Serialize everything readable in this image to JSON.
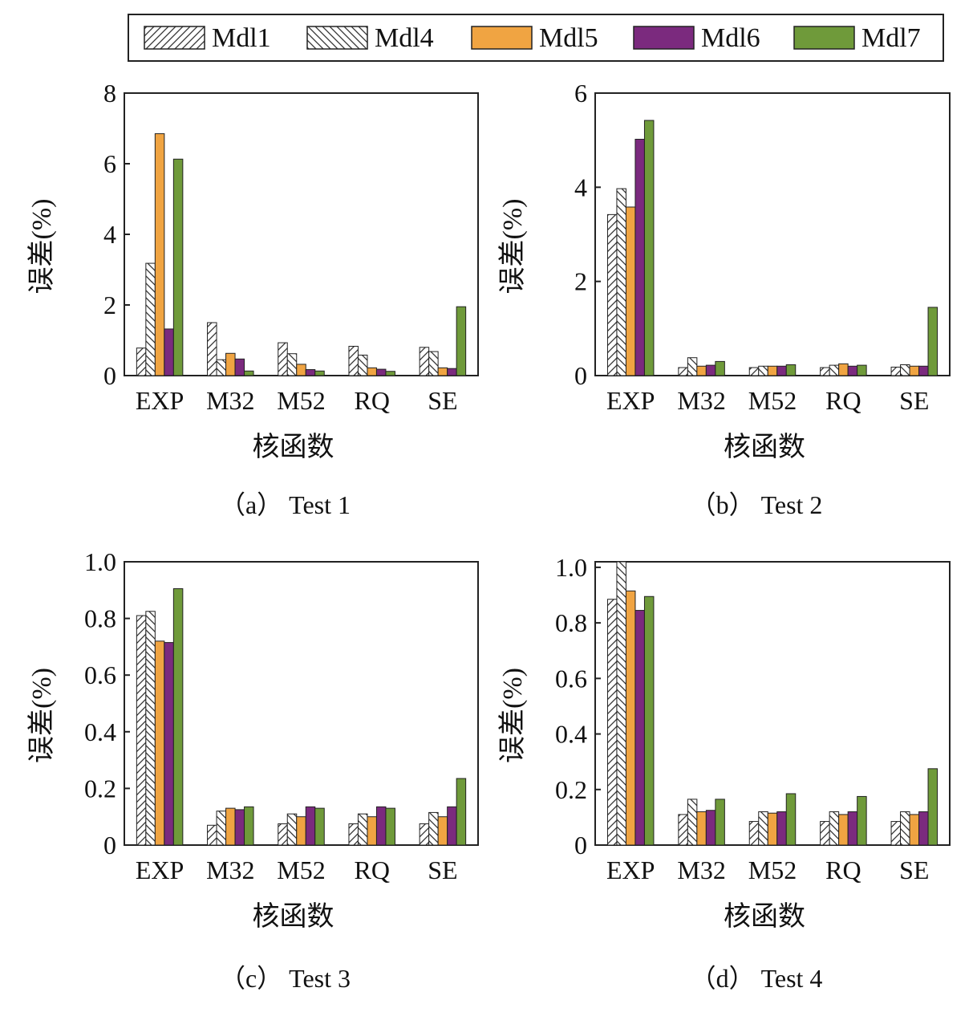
{
  "legend": [
    {
      "name": "Mdl1",
      "pattern": "hatch-fwd",
      "color": "#ffffff"
    },
    {
      "name": "Mdl4",
      "pattern": "hatch-back",
      "color": "#ffffff"
    },
    {
      "name": "Mdl5",
      "pattern": "solid",
      "color": "#f0a442"
    },
    {
      "name": "Mdl6",
      "pattern": "solid",
      "color": "#7b2a7e"
    },
    {
      "name": "Mdl7",
      "pattern": "solid",
      "color": "#6f9a3a"
    }
  ],
  "chart_data": [
    {
      "type": "bar",
      "caption": "（a） Test 1",
      "categories": [
        "EXP",
        "M32",
        "M52",
        "RQ",
        "SE"
      ],
      "xlabel": "核函数",
      "ylabel": "误差(%)",
      "ylim": [
        0,
        8
      ],
      "yticks": [
        "0",
        "2",
        "4",
        "6",
        "8"
      ],
      "series": [
        {
          "name": "Mdl1",
          "values": [
            0.78,
            1.5,
            0.93,
            0.83,
            0.8
          ]
        },
        {
          "name": "Mdl4",
          "values": [
            3.18,
            0.45,
            0.62,
            0.58,
            0.68
          ]
        },
        {
          "name": "Mdl5",
          "values": [
            6.85,
            0.63,
            0.32,
            0.22,
            0.22
          ]
        },
        {
          "name": "Mdl6",
          "values": [
            1.32,
            0.47,
            0.17,
            0.18,
            0.2
          ]
        },
        {
          "name": "Mdl7",
          "values": [
            6.13,
            0.13,
            0.13,
            0.12,
            1.95
          ]
        }
      ]
    },
    {
      "type": "bar",
      "caption": "（b） Test 2",
      "categories": [
        "EXP",
        "M32",
        "M52",
        "RQ",
        "SE"
      ],
      "xlabel": "核函数",
      "ylabel": "误差(%)",
      "ylim": [
        0,
        6
      ],
      "yticks": [
        "0",
        "2",
        "4",
        "6"
      ],
      "series": [
        {
          "name": "Mdl1",
          "values": [
            3.42,
            0.17,
            0.17,
            0.17,
            0.18
          ]
        },
        {
          "name": "Mdl4",
          "values": [
            3.97,
            0.38,
            0.2,
            0.22,
            0.23
          ]
        },
        {
          "name": "Mdl5",
          "values": [
            3.58,
            0.2,
            0.2,
            0.25,
            0.2
          ]
        },
        {
          "name": "Mdl6",
          "values": [
            5.02,
            0.22,
            0.2,
            0.2,
            0.2
          ]
        },
        {
          "name": "Mdl7",
          "values": [
            5.42,
            0.3,
            0.23,
            0.22,
            1.45
          ]
        }
      ]
    },
    {
      "type": "bar",
      "caption": "（c） Test 3",
      "categories": [
        "EXP",
        "M32",
        "M52",
        "RQ",
        "SE"
      ],
      "xlabel": "核函数",
      "ylabel": "误差(%)",
      "ylim": [
        0,
        1.0
      ],
      "yticks": [
        "0",
        "0.2",
        "0.4",
        "0.6",
        "0.8",
        "1.0"
      ],
      "series": [
        {
          "name": "Mdl1",
          "values": [
            0.81,
            0.07,
            0.075,
            0.075,
            0.075
          ]
        },
        {
          "name": "Mdl4",
          "values": [
            0.825,
            0.12,
            0.11,
            0.11,
            0.115
          ]
        },
        {
          "name": "Mdl5",
          "values": [
            0.72,
            0.13,
            0.1,
            0.1,
            0.1
          ]
        },
        {
          "name": "Mdl6",
          "values": [
            0.715,
            0.125,
            0.135,
            0.135,
            0.135
          ]
        },
        {
          "name": "Mdl7",
          "values": [
            0.905,
            0.135,
            0.13,
            0.13,
            0.235
          ]
        }
      ]
    },
    {
      "type": "bar",
      "caption": "（d） Test 4",
      "categories": [
        "EXP",
        "M32",
        "M52",
        "RQ",
        "SE"
      ],
      "xlabel": "核函数",
      "ylabel": "误差(%)",
      "ylim": [
        0,
        1.02
      ],
      "yticks": [
        "0",
        "0.2",
        "0.4",
        "0.6",
        "0.8",
        "1.0"
      ],
      "series": [
        {
          "name": "Mdl1",
          "values": [
            0.885,
            0.11,
            0.085,
            0.085,
            0.085
          ]
        },
        {
          "name": "Mdl4",
          "values": [
            1.02,
            0.165,
            0.12,
            0.12,
            0.12
          ]
        },
        {
          "name": "Mdl5",
          "values": [
            0.915,
            0.12,
            0.115,
            0.11,
            0.11
          ]
        },
        {
          "name": "Mdl6",
          "values": [
            0.845,
            0.125,
            0.12,
            0.12,
            0.12
          ]
        },
        {
          "name": "Mdl7",
          "values": [
            0.895,
            0.165,
            0.185,
            0.175,
            0.275
          ]
        }
      ]
    }
  ]
}
